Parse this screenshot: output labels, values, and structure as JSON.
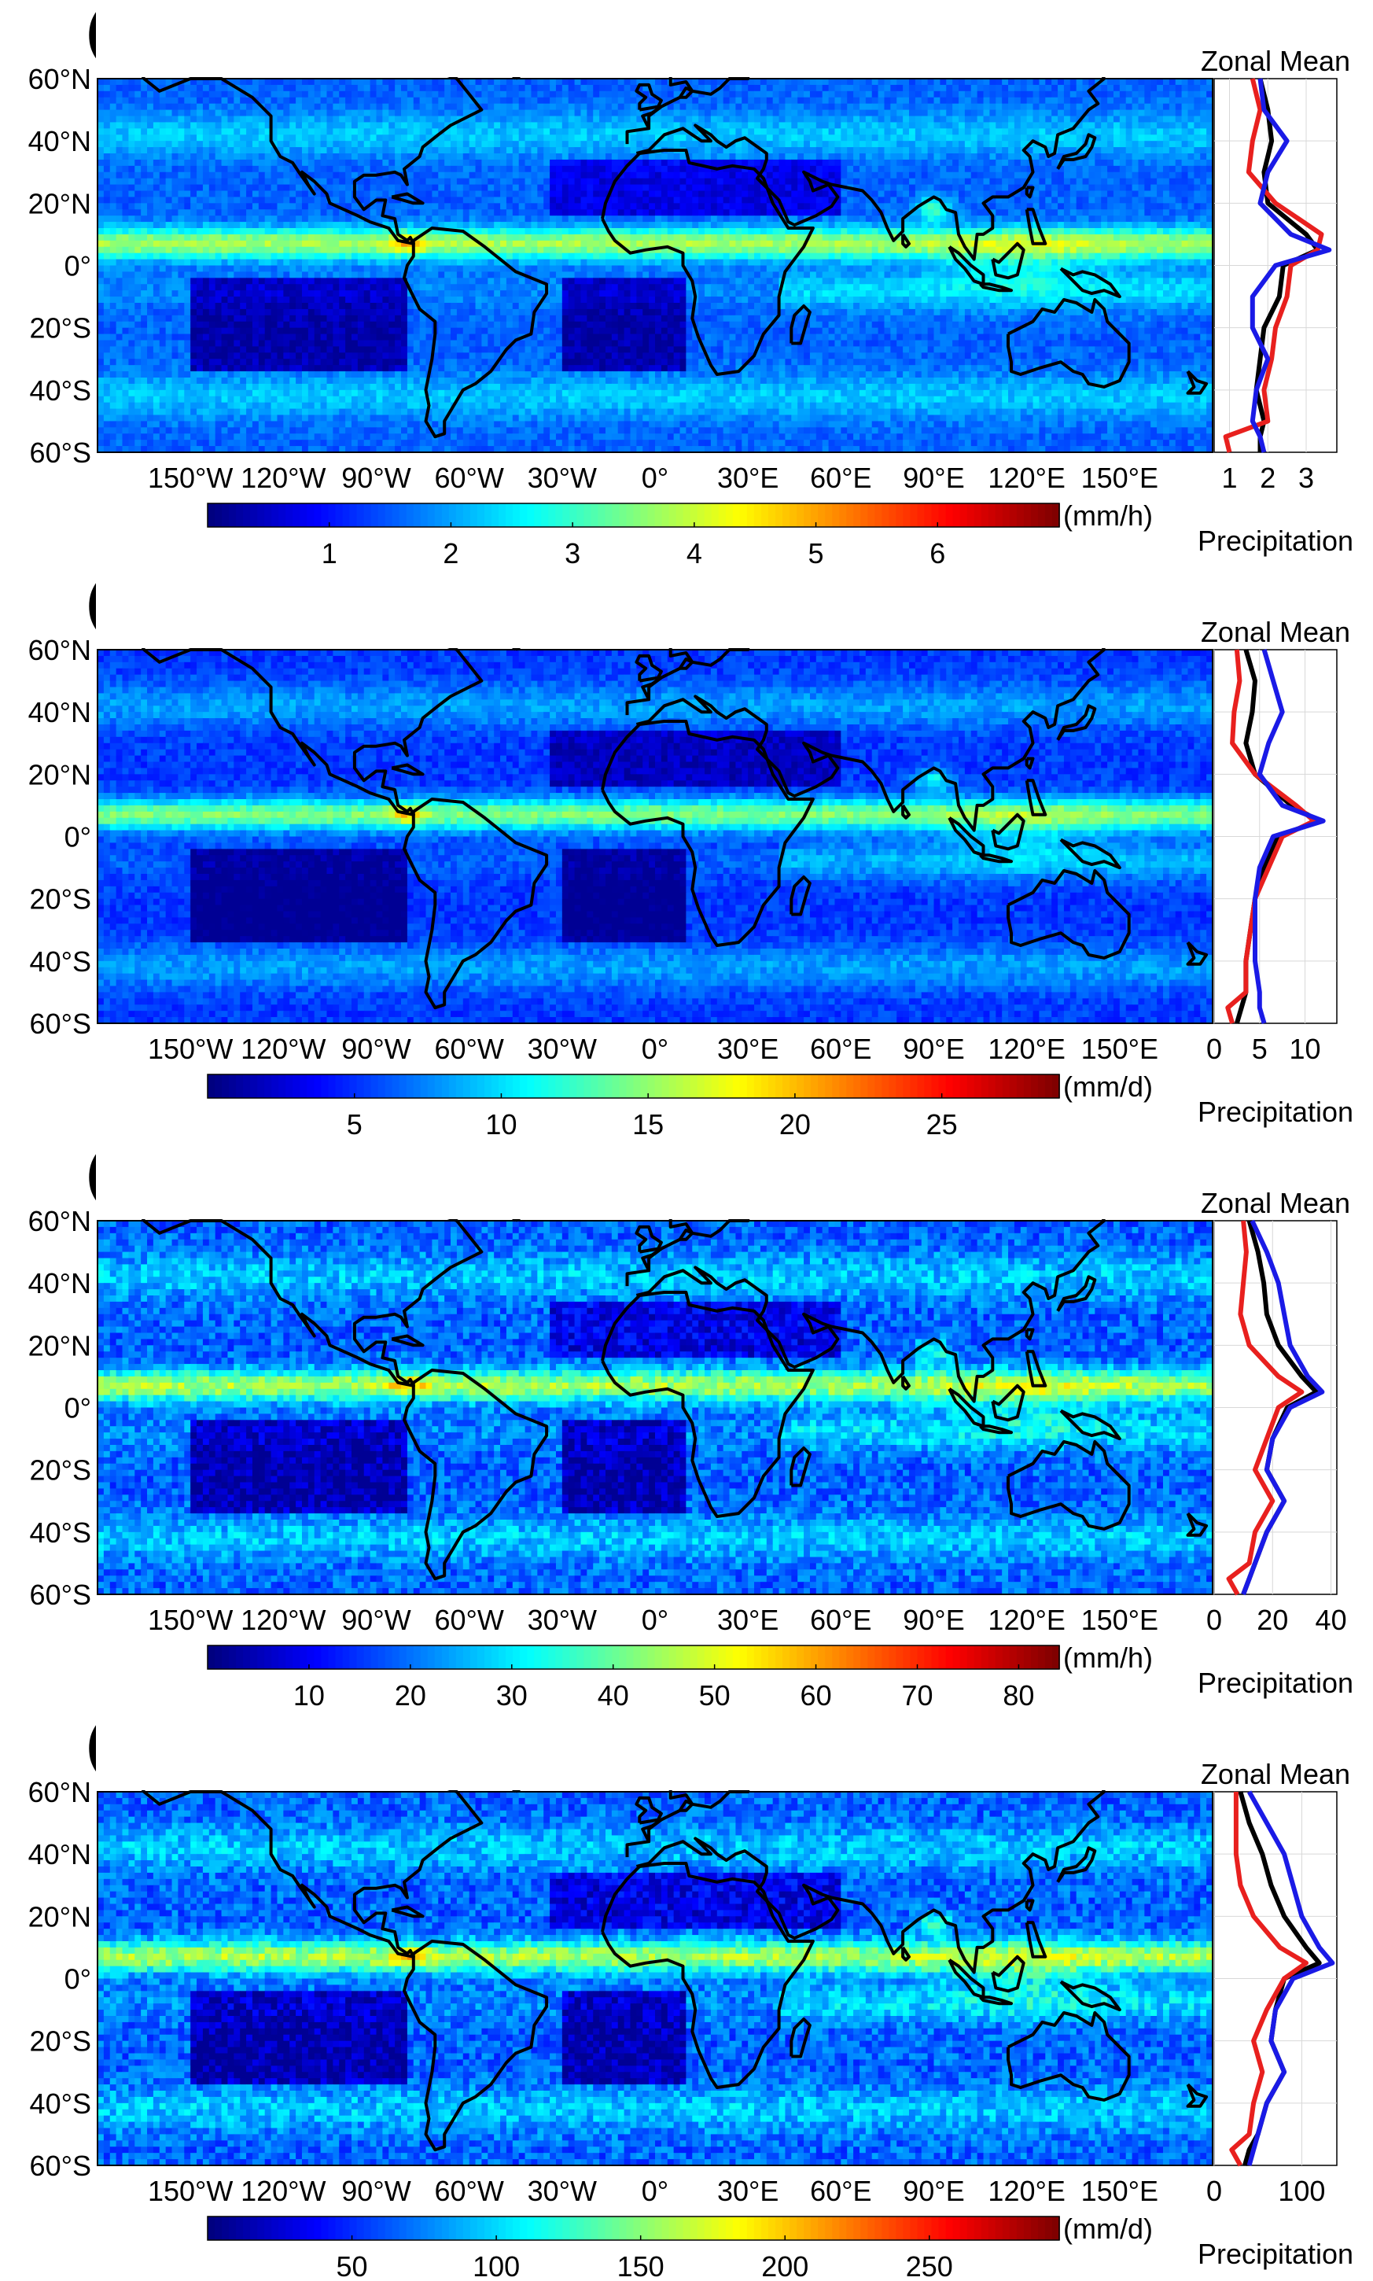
{
  "figure": {
    "lat_ticks": [
      "60°N",
      "40°N",
      "20°N",
      "0°",
      "20°S",
      "40°S",
      "60°S"
    ],
    "lon_ticks": [
      "150°W",
      "120°W",
      "90°W",
      "60°W",
      "30°W",
      "0°",
      "30°E",
      "60°E",
      "90°E",
      "120°E",
      "150°E"
    ],
    "zonal_title": "Zonal Mean",
    "zonal_xlabel": "Precipitation",
    "line_colors": {
      "black": "#000000",
      "red": "#e8201e",
      "blue": "#1a1ae6"
    }
  },
  "panels": [
    {
      "letter": "(a)",
      "unit": "(mm/h)",
      "colorbar_ticks": [
        "1",
        "2",
        "3",
        "4",
        "5",
        "6"
      ],
      "colorbar_range": [
        0,
        7
      ],
      "zonal_ticks": [
        "1",
        "2",
        "3"
      ],
      "zonal_range": [
        0.6,
        3.8
      ]
    },
    {
      "letter": "(b)",
      "unit": "(mm/d)",
      "colorbar_ticks": [
        "5",
        "10",
        "15",
        "20",
        "25"
      ],
      "colorbar_range": [
        0,
        29
      ],
      "zonal_ticks": [
        "0",
        "5",
        "10"
      ],
      "zonal_range": [
        0,
        13.5
      ]
    },
    {
      "letter": "(c)",
      "unit": "(mm/h)",
      "colorbar_ticks": [
        "10",
        "20",
        "30",
        "40",
        "50",
        "60",
        "70",
        "80"
      ],
      "colorbar_range": [
        0,
        84
      ],
      "zonal_ticks": [
        "0",
        "20",
        "40"
      ],
      "zonal_range": [
        0,
        42
      ]
    },
    {
      "letter": "(d)",
      "unit": "(mm/d)",
      "colorbar_ticks": [
        "50",
        "100",
        "150",
        "200",
        "250"
      ],
      "colorbar_range": [
        0,
        295
      ],
      "zonal_ticks": [
        "0",
        "100"
      ],
      "zonal_range": [
        0,
        140
      ]
    }
  ],
  "chart_data": [
    {
      "type": "line",
      "title": "Zonal Mean",
      "xlabel": "Precipitation",
      "lat": [
        60,
        50,
        40,
        30,
        20,
        10,
        5,
        0,
        -10,
        -20,
        -30,
        -40,
        -50,
        -55,
        -60
      ],
      "series": [
        {
          "color": "black",
          "values": [
            1.8,
            2.0,
            2.1,
            1.9,
            2.0,
            3.0,
            3.3,
            2.4,
            2.3,
            1.9,
            1.8,
            1.7,
            1.9,
            1.8,
            1.8
          ]
        },
        {
          "color": "red",
          "values": [
            1.6,
            1.8,
            1.6,
            1.5,
            2.2,
            3.4,
            3.3,
            2.6,
            2.5,
            2.2,
            2.1,
            1.9,
            2.0,
            0.9,
            1.0
          ]
        },
        {
          "color": "blue",
          "values": [
            1.8,
            1.9,
            2.5,
            2.0,
            1.8,
            2.6,
            3.6,
            2.2,
            1.6,
            1.6,
            2.0,
            1.7,
            1.6,
            1.8,
            1.9
          ]
        }
      ]
    },
    {
      "type": "line",
      "title": "Zonal Mean",
      "xlabel": "Precipitation",
      "lat": [
        60,
        50,
        40,
        30,
        20,
        10,
        5,
        0,
        -10,
        -20,
        -30,
        -40,
        -50,
        -55,
        -60
      ],
      "series": [
        {
          "color": "black",
          "values": [
            3.5,
            4.5,
            4.2,
            3.5,
            4.5,
            8.5,
            11.5,
            7.0,
            5.5,
            4.5,
            4.0,
            3.5,
            3.5,
            3.0,
            2.5
          ]
        },
        {
          "color": "red",
          "values": [
            2.5,
            2.8,
            2.2,
            2.0,
            4.5,
            9.0,
            11.0,
            7.5,
            6.0,
            4.5,
            4.0,
            3.5,
            3.5,
            1.5,
            2.0
          ]
        },
        {
          "color": "blue",
          "values": [
            5.5,
            6.5,
            7.5,
            6.0,
            5.0,
            7.5,
            12.0,
            6.5,
            5.0,
            4.5,
            4.5,
            4.5,
            5.0,
            5.0,
            5.5
          ]
        }
      ]
    },
    {
      "type": "line",
      "title": "Zonal Mean",
      "xlabel": "Precipitation",
      "lat": [
        60,
        50,
        40,
        30,
        20,
        10,
        5,
        0,
        -10,
        -20,
        -30,
        -40,
        -50,
        -55,
        -60
      ],
      "series": [
        {
          "color": "black",
          "values": [
            12,
            15,
            17,
            18,
            22,
            30,
            35,
            25,
            20,
            18,
            24,
            18,
            14,
            12,
            10
          ]
        },
        {
          "color": "red",
          "values": [
            10,
            11,
            10,
            9,
            12,
            22,
            30,
            22,
            18,
            14,
            20,
            14,
            12,
            5,
            8
          ]
        },
        {
          "color": "blue",
          "values": [
            13,
            18,
            22,
            24,
            26,
            32,
            37,
            26,
            20,
            18,
            24,
            18,
            14,
            12,
            10
          ]
        }
      ]
    },
    {
      "type": "line",
      "title": "Zonal Mean",
      "xlabel": "Precipitation",
      "lat": [
        60,
        50,
        40,
        30,
        20,
        10,
        5,
        0,
        -10,
        -20,
        -30,
        -40,
        -50,
        -55,
        -60
      ],
      "series": [
        {
          "color": "black",
          "values": [
            30,
            40,
            55,
            65,
            80,
            105,
            120,
            80,
            70,
            65,
            80,
            60,
            50,
            40,
            35
          ]
        },
        {
          "color": "red",
          "values": [
            25,
            25,
            25,
            30,
            45,
            75,
            105,
            80,
            60,
            45,
            55,
            45,
            40,
            20,
            30
          ]
        },
        {
          "color": "blue",
          "values": [
            40,
            60,
            80,
            90,
            100,
            120,
            135,
            90,
            70,
            65,
            80,
            60,
            50,
            45,
            40
          ]
        }
      ]
    }
  ]
}
